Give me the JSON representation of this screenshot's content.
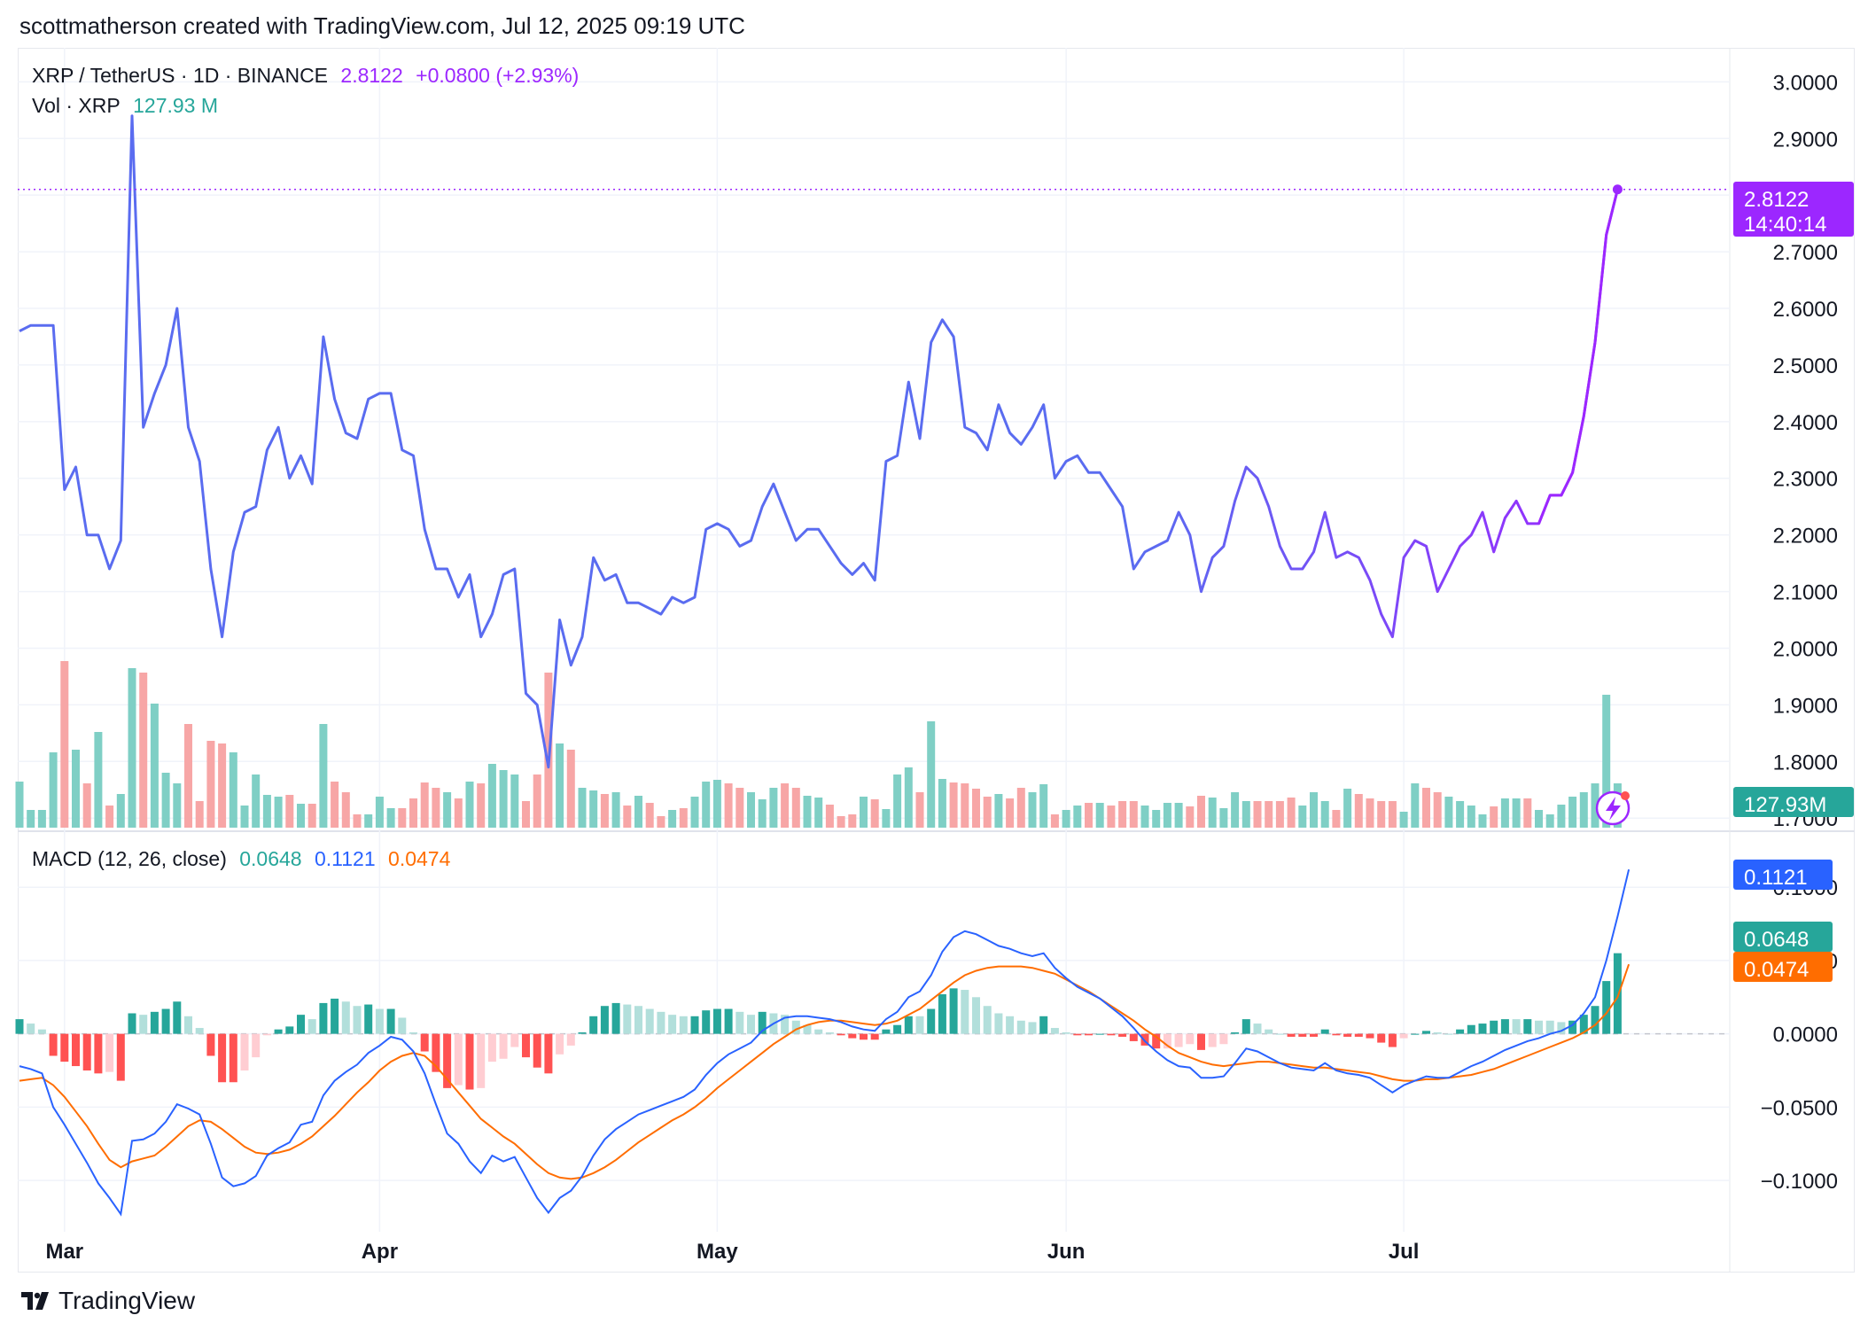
{
  "header": {
    "text": "scottmatherson created with TradingView.com, Jul 12, 2025 09:19 UTC"
  },
  "brand": {
    "name": "TradingView",
    "logo_icon": "tradingview-logo-icon"
  },
  "price_legend": {
    "symbol": "XRP / TetherUS · 1D · BINANCE",
    "last": "2.8122",
    "change": "+0.0800 (+2.93%)",
    "color": "#9c27ff"
  },
  "volume_legend": {
    "label": "Vol · XRP",
    "value": "127.93 M",
    "color": "#26a69a"
  },
  "macd_legend": {
    "label": "MACD (12, 26, close)",
    "hist": "0.0648",
    "macd": "0.1121",
    "signal": "0.0474"
  },
  "badges": {
    "price": "2.8122",
    "countdown": "14:40:14",
    "volume": "127.93M",
    "macd": "0.1121",
    "hist": "0.0648",
    "signal": "0.0474"
  },
  "chart_data": {
    "type": "line",
    "title": "XRP / TetherUS · 1D · BINANCE",
    "x_tick_labels": [
      "Mar",
      "Apr",
      "May",
      "Jun",
      "Jul"
    ],
    "x_tick_days": [
      4,
      32,
      62,
      93,
      123
    ],
    "price_axis": {
      "range": [
        1.68,
        3.06
      ],
      "ticks": [
        "3.0000",
        "2.9000",
        "2.8000",
        "2.7000",
        "2.6000",
        "2.5000",
        "2.4000",
        "2.3000",
        "2.2000",
        "2.1000",
        "2.0000",
        "1.9000",
        "1.8000",
        "1.7000"
      ]
    },
    "macd_axis": {
      "range": [
        -0.135,
        0.137
      ],
      "ticks": [
        "0.1000",
        "0.0500",
        "0.0000",
        "−0.0500",
        "−0.1000"
      ]
    },
    "colors": {
      "price_up": "#9c27ff",
      "price_down": "#5a6cf0",
      "vol_up": "#7fcfc5",
      "vol_down": "#f7a6a6",
      "macd": "#2962ff",
      "signal": "#ff6d00",
      "hist_up_strong": "#26a69a",
      "hist_up_weak": "#b2dfdb",
      "hist_down_strong": "#ff5252",
      "hist_down_weak": "#ffcdd2"
    },
    "series": [
      {
        "name": "XRP / TetherUS",
        "values": [
          2.56,
          2.57,
          2.57,
          2.57,
          2.28,
          2.32,
          2.2,
          2.2,
          2.14,
          2.19,
          2.94,
          2.39,
          2.45,
          2.5,
          2.6,
          2.39,
          2.33,
          2.14,
          2.02,
          2.17,
          2.24,
          2.25,
          2.35,
          2.39,
          2.3,
          2.34,
          2.29,
          2.55,
          2.44,
          2.38,
          2.37,
          2.44,
          2.45,
          2.45,
          2.35,
          2.34,
          2.21,
          2.14,
          2.14,
          2.09,
          2.13,
          2.02,
          2.06,
          2.13,
          2.14,
          1.92,
          1.9,
          1.79,
          2.05,
          1.97,
          2.02,
          2.16,
          2.12,
          2.13,
          2.08,
          2.08,
          2.07,
          2.06,
          2.09,
          2.08,
          2.09,
          2.21,
          2.22,
          2.21,
          2.18,
          2.19,
          2.25,
          2.29,
          2.24,
          2.19,
          2.21,
          2.21,
          2.18,
          2.15,
          2.13,
          2.15,
          2.12,
          2.33,
          2.34,
          2.47,
          2.37,
          2.54,
          2.58,
          2.55,
          2.39,
          2.38,
          2.35,
          2.43,
          2.38,
          2.36,
          2.39,
          2.43,
          2.3,
          2.33,
          2.34,
          2.31,
          2.31,
          2.28,
          2.25,
          2.14,
          2.17,
          2.18,
          2.19,
          2.24,
          2.2,
          2.1,
          2.16,
          2.18,
          2.26,
          2.32,
          2.3,
          2.25,
          2.18,
          2.14,
          2.14,
          2.17,
          2.24,
          2.16,
          2.17,
          2.16,
          2.12,
          2.06,
          2.02,
          2.16,
          2.19,
          2.18,
          2.1,
          2.14,
          2.18,
          2.2,
          2.24,
          2.17,
          2.23,
          2.26,
          2.22,
          2.22,
          2.27,
          2.27,
          2.31,
          2.41,
          2.54,
          2.73,
          2.81
        ]
      },
      {
        "name": "Vol · XRP",
        "values": [
          52,
          20,
          20,
          85,
          188,
          88,
          50,
          108,
          25,
          38,
          180,
          175,
          140,
          62,
          50,
          117,
          30,
          98,
          95,
          85,
          25,
          60,
          37,
          35,
          37,
          27,
          27,
          117,
          52,
          40,
          15,
          15,
          35,
          22,
          22,
          33,
          51,
          45,
          40,
          33,
          52,
          50,
          72,
          65,
          60,
          30,
          60,
          175,
          95,
          88,
          45,
          42,
          38,
          40,
          25,
          36,
          28,
          13,
          20,
          22,
          35,
          52,
          54,
          50,
          45,
          40,
          32,
          45,
          50,
          45,
          36,
          34,
          26,
          13,
          15,
          35,
          32,
          21,
          60,
          68,
          40,
          120,
          55,
          51,
          50,
          44,
          35,
          38,
          33,
          45,
          40,
          49,
          15,
          20,
          25,
          28,
          28,
          25,
          30,
          30,
          25,
          20,
          28,
          28,
          24,
          36,
          34,
          22,
          40,
          30,
          30,
          30,
          30,
          34,
          25,
          40,
          30,
          20,
          44,
          38,
          33,
          30,
          30,
          18,
          50,
          45,
          40,
          35,
          30,
          25,
          15,
          24,
          33,
          33,
          33,
          20,
          15,
          26,
          35,
          40,
          50,
          150,
          50
        ]
      },
      {
        "name": "MACD",
        "values": [
          -0.022,
          -0.024,
          -0.027,
          -0.05,
          -0.062,
          -0.075,
          -0.088,
          -0.102,
          -0.112,
          -0.123,
          -0.073,
          -0.072,
          -0.068,
          -0.06,
          -0.048,
          -0.051,
          -0.055,
          -0.075,
          -0.098,
          -0.104,
          -0.102,
          -0.097,
          -0.083,
          -0.078,
          -0.074,
          -0.062,
          -0.06,
          -0.042,
          -0.032,
          -0.026,
          -0.021,
          -0.013,
          -0.008,
          -0.002,
          -0.004,
          -0.012,
          -0.027,
          -0.048,
          -0.068,
          -0.075,
          -0.087,
          -0.095,
          -0.083,
          -0.087,
          -0.084,
          -0.098,
          -0.112,
          -0.122,
          -0.112,
          -0.107,
          -0.097,
          -0.083,
          -0.072,
          -0.065,
          -0.06,
          -0.055,
          -0.052,
          -0.049,
          -0.046,
          -0.043,
          -0.038,
          -0.028,
          -0.02,
          -0.014,
          -0.01,
          -0.006,
          0.002,
          0.007,
          0.011,
          0.012,
          0.012,
          0.011,
          0.01,
          0.008,
          0.005,
          0.003,
          0.002,
          0.01,
          0.015,
          0.025,
          0.029,
          0.04,
          0.056,
          0.066,
          0.07,
          0.068,
          0.064,
          0.06,
          0.058,
          0.055,
          0.053,
          0.055,
          0.045,
          0.038,
          0.032,
          0.028,
          0.024,
          0.018,
          0.012,
          0.004,
          -0.005,
          -0.012,
          -0.018,
          -0.022,
          -0.023,
          -0.03,
          -0.03,
          -0.029,
          -0.02,
          -0.01,
          -0.012,
          -0.016,
          -0.02,
          -0.023,
          -0.024,
          -0.025,
          -0.02,
          -0.025,
          -0.027,
          -0.028,
          -0.03,
          -0.035,
          -0.04,
          -0.035,
          -0.032,
          -0.029,
          -0.03,
          -0.03,
          -0.026,
          -0.022,
          -0.019,
          -0.015,
          -0.011,
          -0.008,
          -0.005,
          -0.003,
          0.0,
          0.002,
          0.006,
          0.014,
          0.025,
          0.05,
          0.08,
          0.1121
        ]
      },
      {
        "name": "Signal",
        "values": [
          -0.032,
          -0.031,
          -0.03,
          -0.035,
          -0.043,
          -0.053,
          -0.063,
          -0.075,
          -0.086,
          -0.091,
          -0.087,
          -0.085,
          -0.083,
          -0.077,
          -0.07,
          -0.063,
          -0.059,
          -0.06,
          -0.065,
          -0.071,
          -0.077,
          -0.081,
          -0.082,
          -0.081,
          -0.079,
          -0.075,
          -0.07,
          -0.063,
          -0.056,
          -0.048,
          -0.04,
          -0.033,
          -0.025,
          -0.019,
          -0.015,
          -0.013,
          -0.015,
          -0.022,
          -0.031,
          -0.04,
          -0.049,
          -0.058,
          -0.064,
          -0.07,
          -0.075,
          -0.082,
          -0.089,
          -0.095,
          -0.098,
          -0.099,
          -0.098,
          -0.095,
          -0.091,
          -0.086,
          -0.08,
          -0.074,
          -0.069,
          -0.064,
          -0.059,
          -0.055,
          -0.05,
          -0.044,
          -0.037,
          -0.031,
          -0.025,
          -0.019,
          -0.013,
          -0.007,
          -0.002,
          0.003,
          0.006,
          0.008,
          0.009,
          0.009,
          0.008,
          0.007,
          0.006,
          0.007,
          0.009,
          0.013,
          0.017,
          0.023,
          0.029,
          0.035,
          0.04,
          0.043,
          0.045,
          0.046,
          0.046,
          0.046,
          0.045,
          0.043,
          0.041,
          0.037,
          0.033,
          0.029,
          0.024,
          0.019,
          0.014,
          0.009,
          0.003,
          -0.002,
          -0.008,
          -0.013,
          -0.016,
          -0.019,
          -0.021,
          -0.022,
          -0.021,
          -0.02,
          -0.019,
          -0.019,
          -0.02,
          -0.021,
          -0.022,
          -0.023,
          -0.023,
          -0.024,
          -0.025,
          -0.026,
          -0.027,
          -0.029,
          -0.031,
          -0.032,
          -0.032,
          -0.031,
          -0.031,
          -0.03,
          -0.029,
          -0.028,
          -0.026,
          -0.024,
          -0.021,
          -0.018,
          -0.015,
          -0.012,
          -0.009,
          -0.006,
          -0.003,
          0.001,
          0.006,
          0.014,
          0.025,
          0.0474
        ]
      }
    ]
  }
}
